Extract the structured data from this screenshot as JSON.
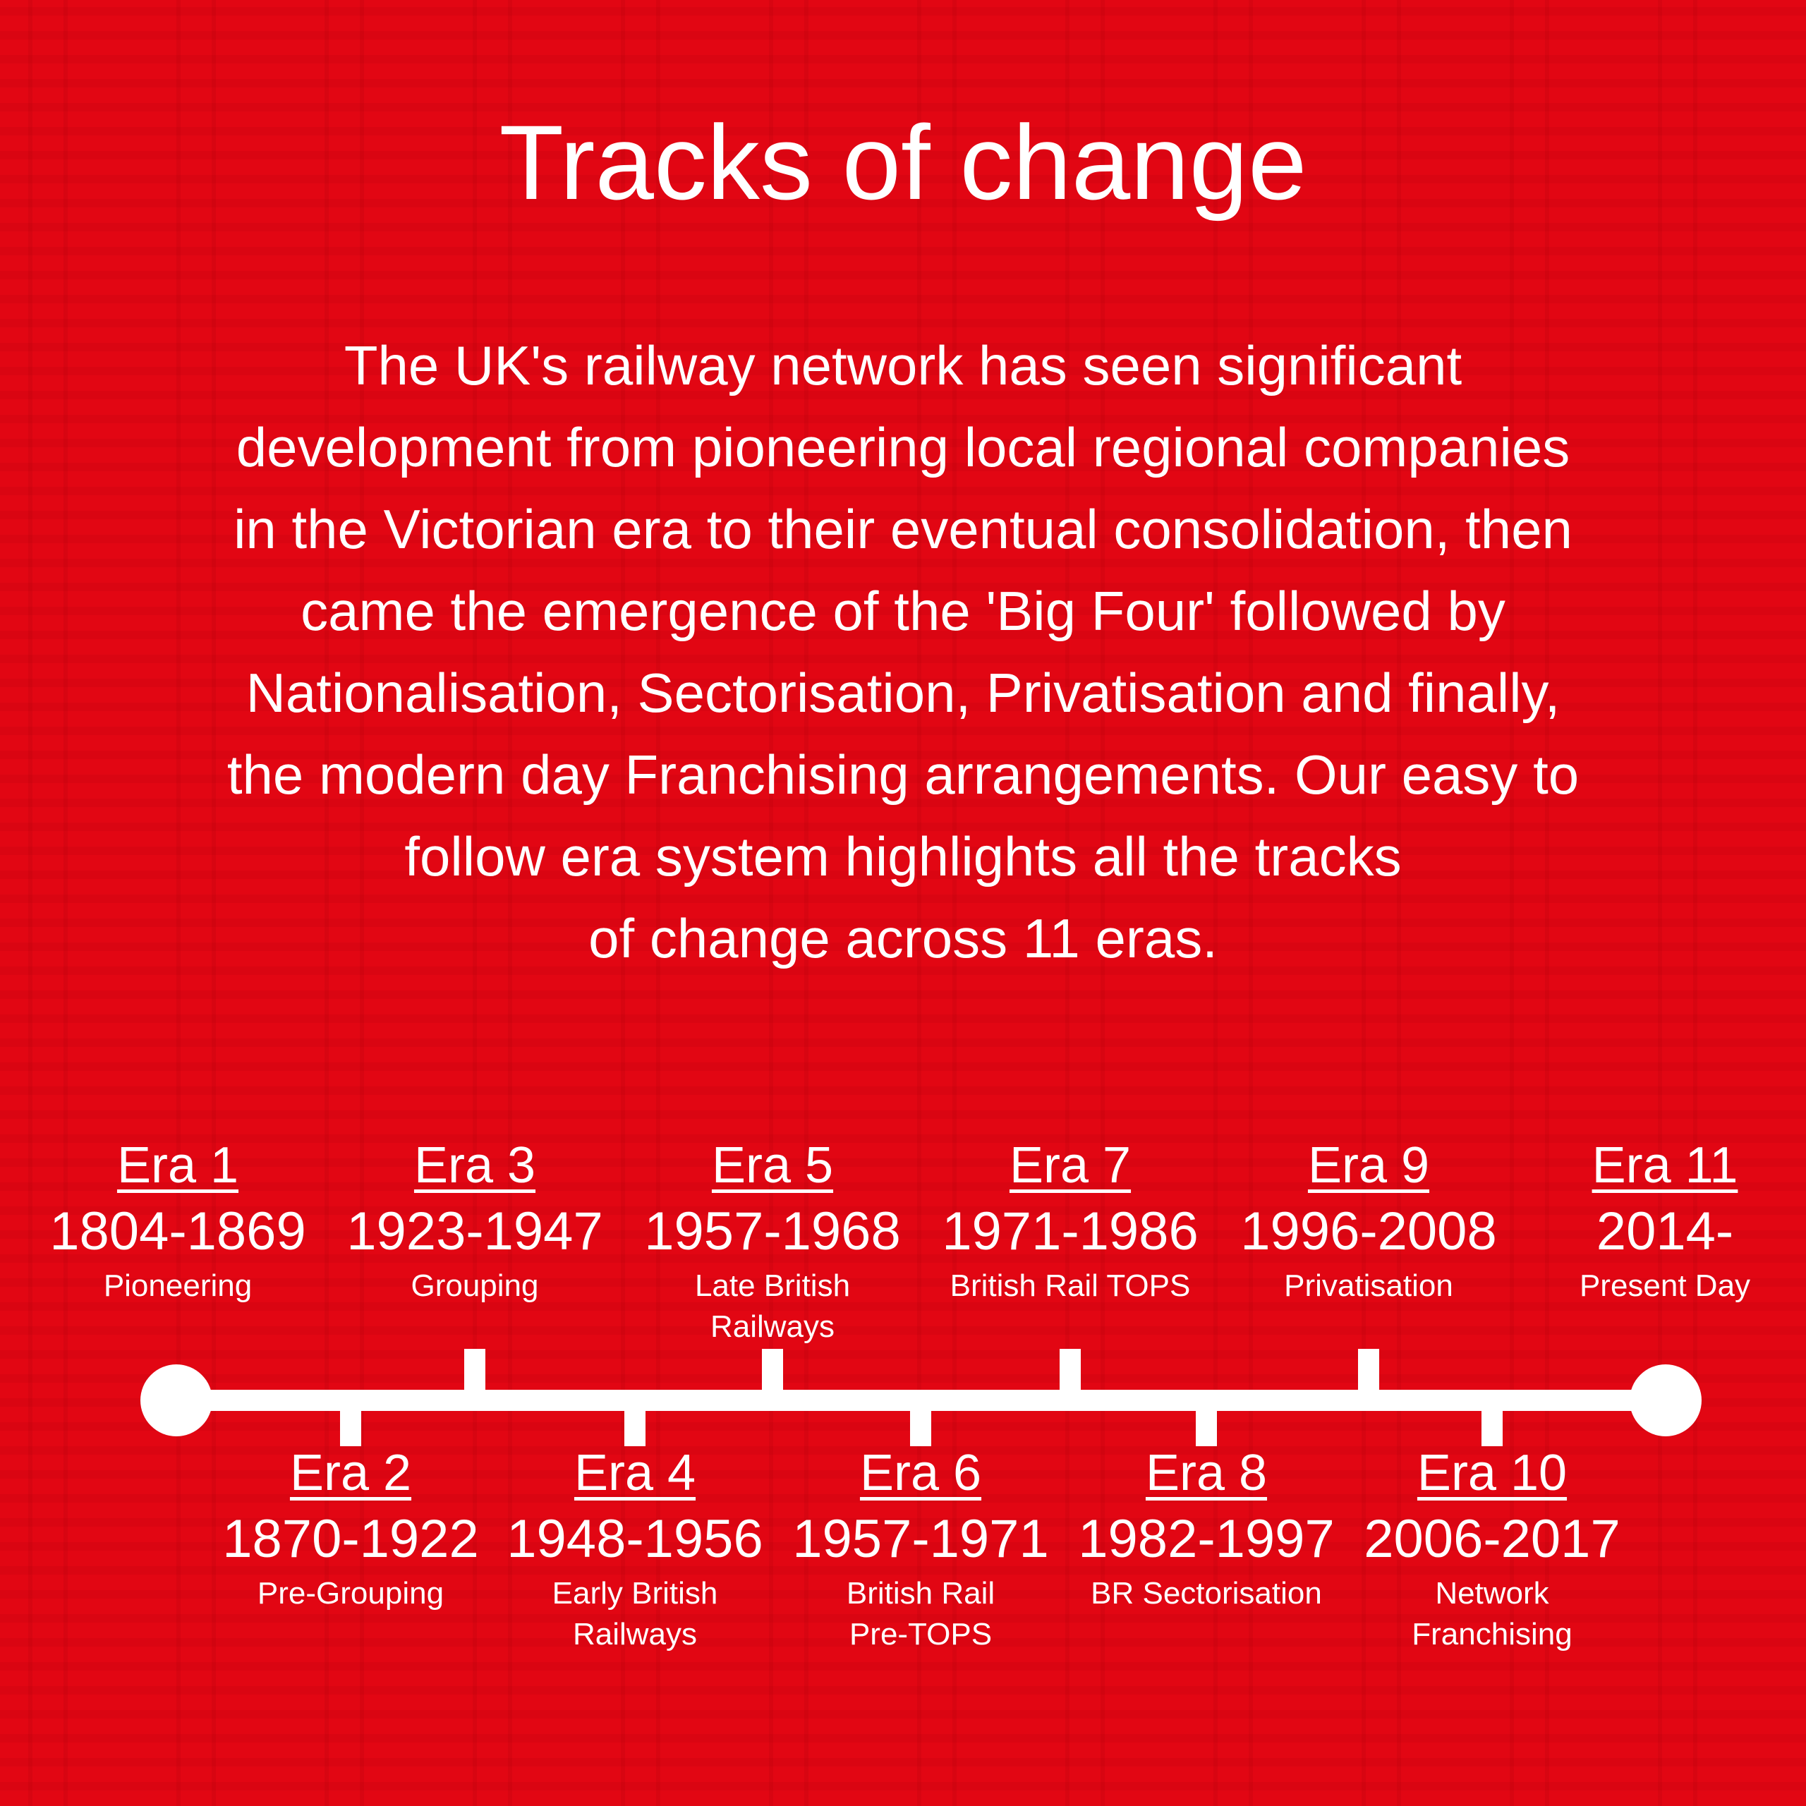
{
  "title": "Tracks of change",
  "intro_lines": [
    "The UK's railway network has seen significant",
    "development from pioneering local regional companies",
    "in the Victorian era to their eventual consolidation, then",
    "came the emergence of the 'Big Four' followed by",
    "Nationalisation, Sectorisation, Privatisation and finally,",
    "the modern day Franchising arrangements. Our easy to",
    "follow era system highlights all the tracks",
    "of change across 11 eras."
  ],
  "eras": [
    {
      "name": "Era 1",
      "years": "1804-1869",
      "sub": [
        "Pioneering"
      ]
    },
    {
      "name": "Era 2",
      "years": "1870-1922",
      "sub": [
        "Pre-Grouping"
      ]
    },
    {
      "name": "Era 3",
      "years": "1923-1947",
      "sub": [
        "Grouping"
      ]
    },
    {
      "name": "Era 4",
      "years": "1948-1956",
      "sub": [
        "Early British",
        "Railways"
      ]
    },
    {
      "name": "Era 5",
      "years": "1957-1968",
      "sub": [
        "Late British",
        "Railways"
      ]
    },
    {
      "name": "Era 6",
      "years": "1957-1971",
      "sub": [
        "British Rail",
        "Pre-TOPS"
      ]
    },
    {
      "name": "Era 7",
      "years": "1971-1986",
      "sub": [
        "British Rail TOPS"
      ]
    },
    {
      "name": "Era 8",
      "years": "1982-1997",
      "sub": [
        "BR Sectorisation"
      ]
    },
    {
      "name": "Era 9",
      "years": "1996-2008",
      "sub": [
        "Privatisation"
      ]
    },
    {
      "name": "Era 10",
      "years": "2006-2017",
      "sub": [
        "Network",
        "Franchising"
      ]
    },
    {
      "name": "Era 11",
      "years": "2014-",
      "sub": [
        "Present Day"
      ]
    }
  ],
  "colors": {
    "background": "#e20613",
    "foreground": "#ffffff"
  }
}
